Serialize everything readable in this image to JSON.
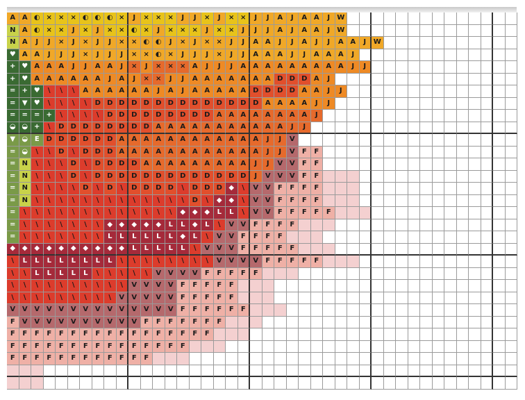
{
  "pattern": {
    "palette": {
      "0": "#ffffff",
      "1": "#e8c31a",
      "2": "#f0a828",
      "3": "#ee8a25",
      "4": "#e66a2c",
      "5": "#e14f2c",
      "6": "#dc3c2c",
      "7": "#a52a3a",
      "8": "#b5696c",
      "9": "#efb0a6",
      "10": "#f4d0d0",
      "11": "#7a9a48",
      "12": "#3a6a32",
      "13": "#c8d24a"
    },
    "rows": [
      "A A ◐ × × × ◐ ◐ ◐ × J × × × J J × J × × J J A J A A J W",
      "N A ◐ × × J × J × × ◐ × J × × × J × × J J J A J A A J W",
      "N A J J × J × J J × × ◐ ◐ J × J × × J J A A J J A J J A A J W",
      "♥ A A J J J × J J J × × ◐ × J J J × J J A A A J J A A A J",
      "+ ♥ A A A J J A A J × J × × × A J J J A A A A A A A A A J J",
      "+ ♥ A A A A A A J A J × × J J A A A A A A A D D D A J",
      "= + ♥ \\ \\ \\ A A A A A A J A J A A A A A D D D D A A J J",
      "= ▼ ♥ \\ \\ \\ \\ D D D D D D D D D D D D D D A A A A J J",
      "= = = + \\ \\ \\ \\ D D D D D D D D D A A A A A A A A J",
      "◒ ◒ + \\ D D D D D D D D A A A A A A A A A A A J J",
      "▼ ◒ E D D D D D D A A A A A A A A A A A A J J V",
      "= ◒ \\ \\ D \\ D D D A A A A A A A A A A A A J J V F F",
      "= N \\ \\ \\ D \\ D D D D A A A A A A A A A J J V V F F",
      "= N \\ \\ \\ D \\ D D D D D D D D D D D D D J V V V F F",
      "= N \\ \\ \\ \\ D \\ D \\ D D D D \\ D D D ◆ \\ V V F F F F",
      "= N \\ \\ \\ \\ \\ \\ \\ \\ \\ \\ \\ \\ \\ D \\ ◆ ◆ \\ V V F F F F",
      "= \\ \\ \\ \\ \\ \\ \\ \\ \\ \\ \\ \\ \\ ◆ ◆ ◆ L L \\ V V F F F F F",
      "= \\ \\ \\ \\ \\ \\ \\ ◆ ◆ ◆ ◆ ◆ L L ◆ L \\ V V F F F F",
      "= \\ \\ \\ \\ \\ \\ \\ L L L L L L ◆ L \\ V V F F F F",
      "◆ ◆ ◆ ◆ ◆ ◆ ◆ ◆ ◆ ◆ L L L L L \\ V V V F F F F F",
      "\\ L L L L L L L L \\ \\ \\ \\ \\ \\ \\ \\ V V V V F F F F F",
      "\\ \\ L L L L L \\ \\ \\ \\ \\ V V V V F F F F F",
      "\\ \\ \\ \\ \\ \\ \\ \\ \\ \\ V V V V F F F F F",
      "\\ \\ \\ \\ \\ \\ \\ \\ \\ V V V V V F F F F F",
      "V V V V V V V V V V V V V V F F F F F F",
      "F V V V V V V V V V V F F F F F F F",
      "F F F F F F F F F F F F F F F F F",
      "F F F F F F F F F F F F F F F",
      "F F F F F F F F F F F F"
    ],
    "extra_marks": [
      "F",
      "F",
      "F",
      "F",
      "F"
    ]
  }
}
